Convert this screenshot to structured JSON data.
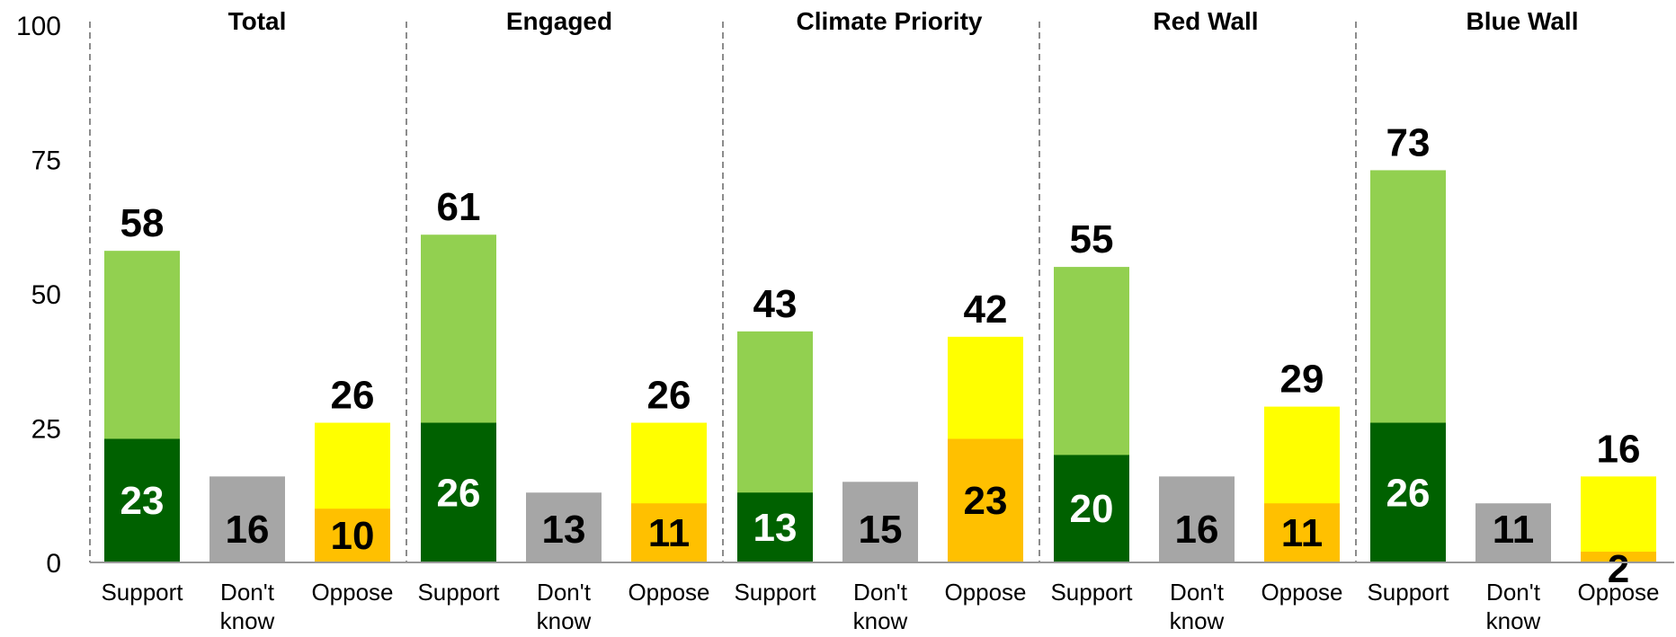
{
  "chart_data": {
    "type": "bar",
    "stacked": true,
    "ylim": [
      0,
      100
    ],
    "yticks": [
      "0",
      "25",
      "50",
      "75",
      "100"
    ],
    "grid": false,
    "colors": {
      "support_strong": "#006100",
      "support_total": "#92D050",
      "dont_know": "#A6A6A6",
      "oppose_strong": "#FFC000",
      "oppose_total": "#FFFF00"
    },
    "panels": [
      {
        "title": "Total",
        "bars": [
          {
            "label": "Support",
            "total": 58,
            "inner": 23
          },
          {
            "label": "Don't know",
            "total": 16
          },
          {
            "label": "Oppose",
            "total": 26,
            "inner": 10
          }
        ]
      },
      {
        "title": "Engaged",
        "bars": [
          {
            "label": "Support",
            "total": 61,
            "inner": 26
          },
          {
            "label": "Don't know",
            "total": 13
          },
          {
            "label": "Oppose",
            "total": 26,
            "inner": 11
          }
        ]
      },
      {
        "title": "Climate Priority",
        "bars": [
          {
            "label": "Support",
            "total": 43,
            "inner": 13
          },
          {
            "label": "Don't know",
            "total": 15
          },
          {
            "label": "Oppose",
            "total": 42,
            "inner": 23
          }
        ]
      },
      {
        "title": "Red Wall",
        "bars": [
          {
            "label": "Support",
            "total": 55,
            "inner": 20
          },
          {
            "label": "Don't know",
            "total": 16
          },
          {
            "label": "Oppose",
            "total": 29,
            "inner": 11
          }
        ]
      },
      {
        "title": "Blue Wall",
        "bars": [
          {
            "label": "Support",
            "total": 73,
            "inner": 26
          },
          {
            "label": "Don't know",
            "total": 11
          },
          {
            "label": "Oppose",
            "total": 16,
            "inner": 2
          }
        ]
      }
    ]
  }
}
